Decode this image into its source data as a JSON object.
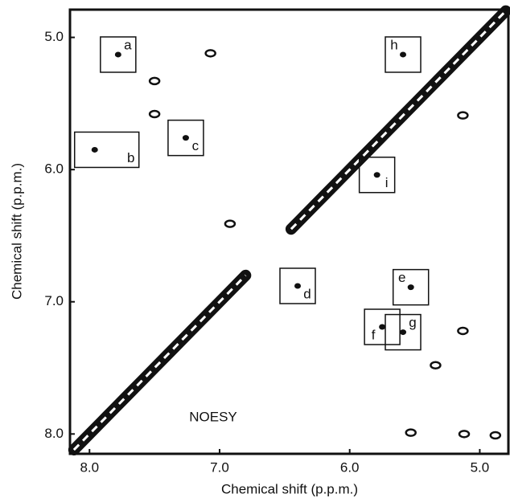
{
  "chart_data": {
    "type": "contour",
    "title": "NOESY",
    "x_label": "Chemical shift (p.p.m.)",
    "y_label": "Chemical shift (p.p.m.)",
    "xlim": [
      8.15,
      4.78
    ],
    "ylim": [
      8.15,
      4.79
    ],
    "xticks": [
      {
        "value": 8,
        "label": "8.0"
      },
      {
        "value": 7,
        "label": "7.0"
      },
      {
        "value": 6,
        "label": "6.0"
      },
      {
        "value": 5,
        "label": "5.0"
      }
    ],
    "yticks": [
      {
        "value": 5,
        "label": "5.0"
      },
      {
        "value": 6,
        "label": "6.0"
      },
      {
        "value": 7,
        "label": "7.0"
      },
      {
        "value": 8,
        "label": "8.0"
      }
    ],
    "color": "#111111",
    "diagonal": {
      "x": [
        8.12,
        8.0,
        7.9,
        7.8,
        7.7,
        7.6,
        7.5,
        7.4,
        7.3,
        7.2,
        7.1,
        7.0,
        6.9,
        6.8,
        null,
        6.45,
        6.4,
        6.3,
        6.2,
        6.1,
        6.0,
        5.9,
        5.8,
        5.7,
        5.6,
        5.5,
        5.4,
        5.3,
        5.2,
        5.1,
        5.0,
        4.9,
        4.8
      ],
      "y": [
        8.12,
        8.0,
        7.9,
        7.8,
        7.7,
        7.6,
        7.5,
        7.4,
        7.3,
        7.2,
        7.1,
        7.0,
        6.9,
        6.8,
        null,
        6.45,
        6.4,
        6.3,
        6.2,
        6.1,
        6.0,
        5.9,
        5.8,
        5.7,
        5.6,
        5.5,
        5.4,
        5.3,
        5.2,
        5.1,
        5.0,
        4.9,
        4.8
      ]
    },
    "labeled_peaks": {
      "labels": [
        "a",
        "b",
        "c",
        "h",
        "i",
        "d",
        "e",
        "f",
        "g"
      ],
      "x": [
        7.78,
        7.96,
        7.26,
        5.59,
        5.79,
        6.4,
        5.53,
        5.75,
        5.59
      ],
      "y": [
        5.13,
        5.85,
        5.76,
        5.13,
        6.04,
        6.88,
        6.89,
        7.19,
        7.23
      ]
    },
    "other_peaks": {
      "x": [
        7.07,
        7.5,
        7.5,
        6.92,
        5.13,
        5.13,
        5.12,
        4.88,
        5.53,
        5.34
      ],
      "y": [
        5.12,
        5.33,
        5.58,
        6.41,
        5.59,
        7.22,
        8.0,
        8.01,
        7.99,
        7.48
      ]
    }
  }
}
